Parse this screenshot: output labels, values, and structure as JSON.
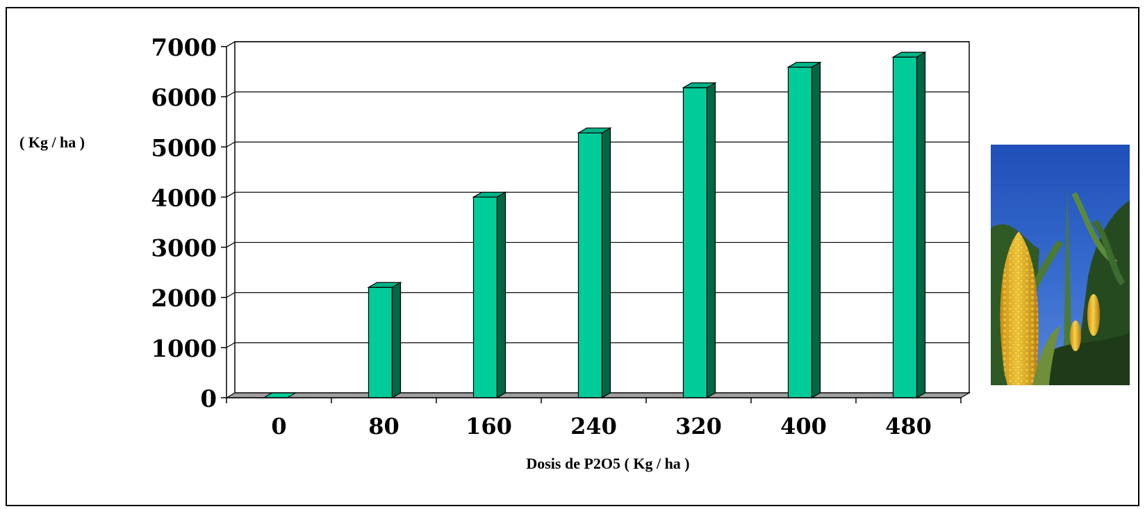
{
  "chart_data": {
    "type": "bar",
    "title": "",
    "xlabel": "Dosis de P2O5 ( Kg / ha )",
    "ylabel": "( Kg / ha )",
    "categories": [
      "0",
      "80",
      "160",
      "240",
      "320",
      "400",
      "480"
    ],
    "values": [
      0,
      2200,
      4000,
      5280,
      6180,
      6590,
      6790
    ],
    "yticks": [
      "0",
      "1000",
      "2000",
      "3000",
      "4000",
      "5000",
      "6000",
      "7000"
    ],
    "ylim": [
      0,
      7000
    ],
    "grid": true,
    "legend": "none",
    "colors": {
      "bar_front": "#00CC99",
      "bar_side": "#006644",
      "bar_top": "#00B386",
      "floor": "#A0A0A0",
      "grid": "#000000"
    }
  },
  "photo": {
    "icon": "corn-photo",
    "colors": {
      "sky": "#1F4FB8",
      "corn": "#F2C23A",
      "leaves": "#3E6B2E"
    }
  }
}
